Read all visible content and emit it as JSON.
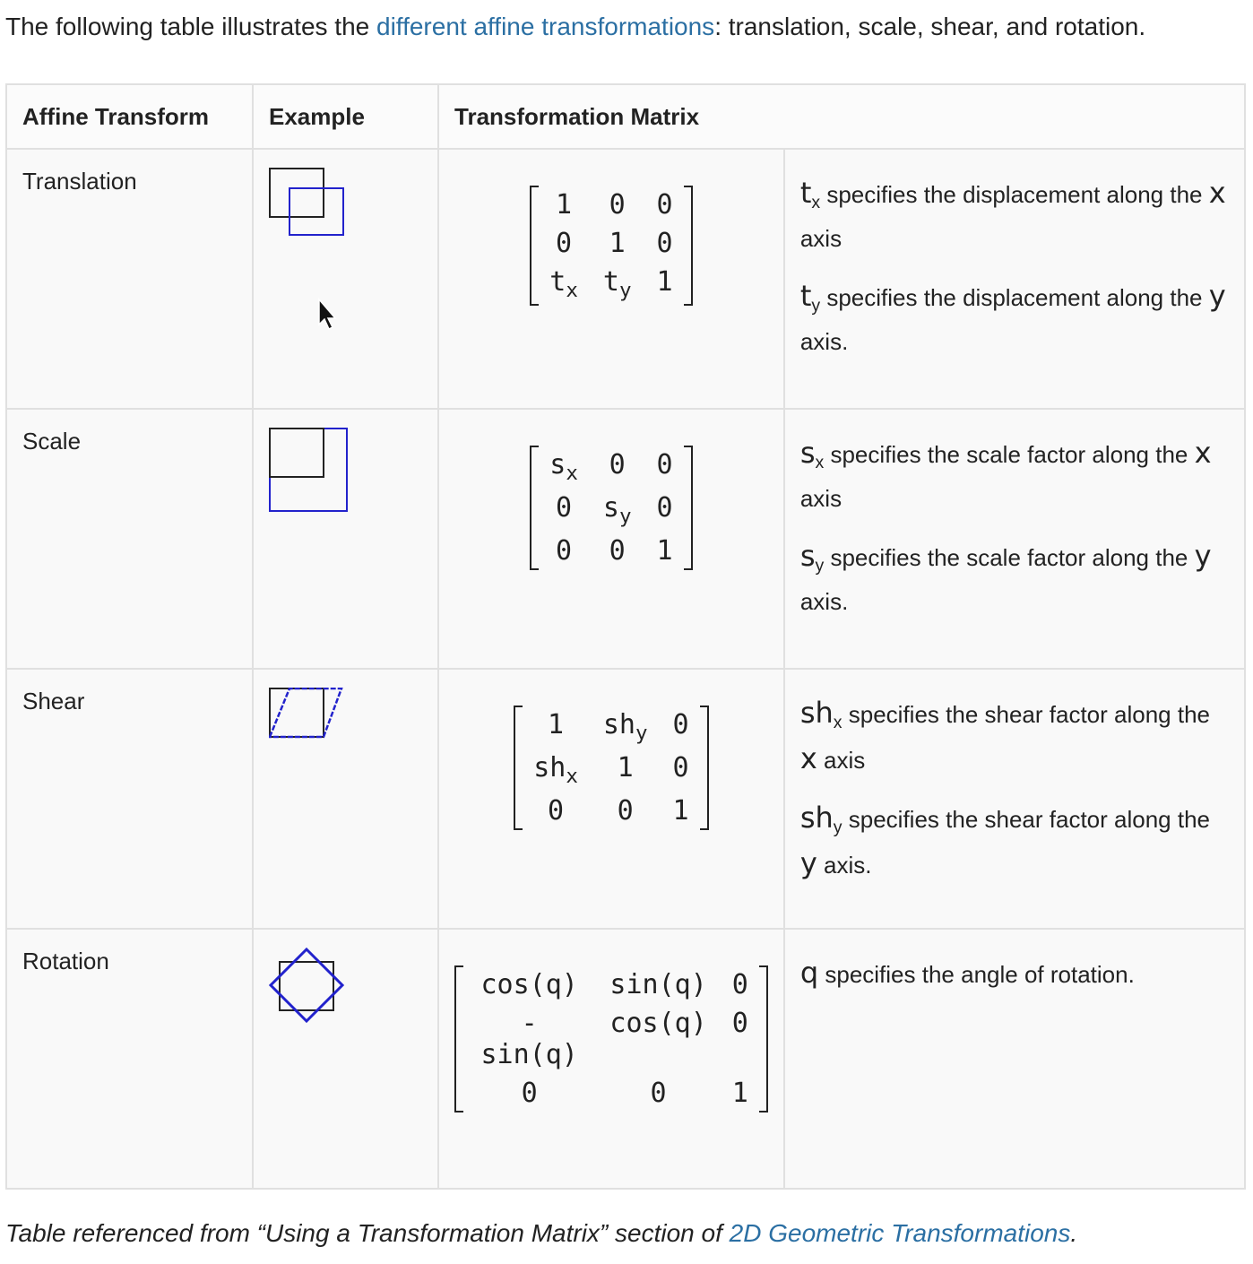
{
  "intro": {
    "before": "The following table illustrates the ",
    "link": "different affine transformations",
    "after": ": translation, scale, shear, and rotation."
  },
  "table": {
    "header": [
      "Affine Transform",
      "Example",
      "Transformation Matrix"
    ],
    "rows": [
      {
        "name": "Translation",
        "matrix": [
          [
            [
              "1"
            ],
            [
              "0"
            ],
            [
              "0"
            ]
          ],
          [
            [
              "0"
            ],
            [
              "1"
            ],
            [
              "0"
            ]
          ],
          [
            [
              "t",
              "x"
            ],
            [
              "t",
              "y"
            ],
            [
              "1"
            ]
          ]
        ],
        "notes": [
          {
            "sym": "t",
            "sub": "x",
            "text": " specifies the displacement along the ",
            "axis": "x",
            "end": " axis"
          },
          {
            "sym": "t",
            "sub": "y",
            "text": " specifies the displacement along the ",
            "axis": "y",
            "end": " axis."
          }
        ]
      },
      {
        "name": "Scale",
        "matrix": [
          [
            [
              "s",
              "x"
            ],
            [
              "0"
            ],
            [
              "0"
            ]
          ],
          [
            [
              "0"
            ],
            [
              "s",
              "y"
            ],
            [
              "0"
            ]
          ],
          [
            [
              "0"
            ],
            [
              "0"
            ],
            [
              "1"
            ]
          ]
        ],
        "notes": [
          {
            "sym": "s",
            "sub": "x",
            "text": " specifies the scale factor along the ",
            "axis": "x",
            "end": " axis"
          },
          {
            "sym": "s",
            "sub": "y",
            "text": " specifies the scale factor along the ",
            "axis": "y",
            "end": " axis."
          }
        ]
      },
      {
        "name": "Shear",
        "matrix": [
          [
            [
              "1"
            ],
            [
              "sh",
              "y"
            ],
            [
              "0"
            ]
          ],
          [
            [
              "sh",
              "x"
            ],
            [
              "1"
            ],
            [
              "0"
            ]
          ],
          [
            [
              "0"
            ],
            [
              "0"
            ],
            [
              "1"
            ]
          ]
        ],
        "notes": [
          {
            "sym": "sh",
            "sub": "x",
            "text": " specifies the shear factor along the ",
            "axis": "x",
            "end": " axis"
          },
          {
            "sym": "sh",
            "sub": "y",
            "text": " specifies the shear factor along the ",
            "axis": "y",
            "end": " axis."
          }
        ]
      },
      {
        "name": "Rotation",
        "matrix": [
          [
            [
              "cos(q)"
            ],
            [
              "sin(q)"
            ],
            [
              "0"
            ]
          ],
          [
            [
              "-sin(q)"
            ],
            [
              "cos(q)"
            ],
            [
              "0"
            ]
          ],
          [
            [
              "0"
            ],
            [
              "0"
            ],
            [
              "1"
            ]
          ]
        ],
        "notes": [
          {
            "sym": "q",
            "text": " specifies the angle of rotation."
          }
        ]
      }
    ]
  },
  "caption": {
    "before": "Table referenced from “Using a Transformation Matrix” section of ",
    "link": "2D Geometric Transformations",
    "after": "."
  }
}
